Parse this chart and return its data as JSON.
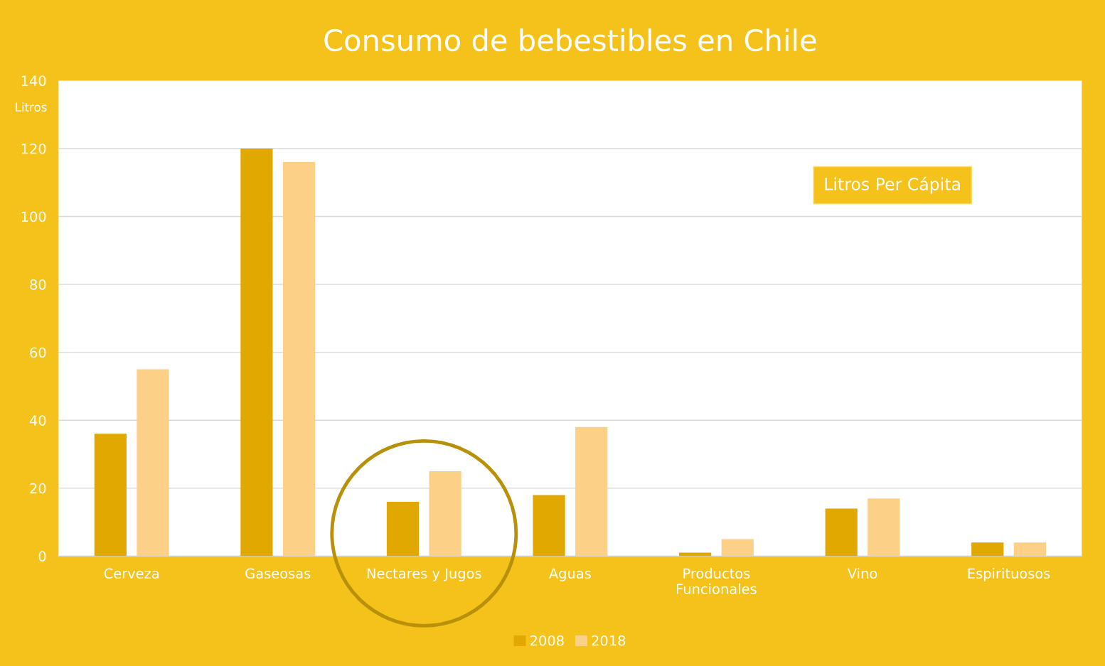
{
  "chart_data": {
    "type": "bar",
    "title": "Consumo de bebestibles en Chile",
    "ylabel": "Litros",
    "categories": [
      "Cerveza",
      "Gaseosas",
      "Nectares y Jugos",
      "Aguas",
      "Productos\nFuncionales",
      "Vino",
      "Espirituosos"
    ],
    "series": [
      {
        "name": "2008",
        "color": "#e0a800",
        "values": [
          36,
          120,
          16,
          18,
          1,
          14,
          4
        ]
      },
      {
        "name": "2018",
        "color": "#fdd088",
        "values": [
          55,
          116,
          25,
          38,
          5,
          17,
          4
        ]
      }
    ],
    "ylim": [
      0,
      140
    ],
    "yticks": [
      0,
      20,
      40,
      60,
      80,
      100,
      120,
      140
    ],
    "grid": "y",
    "legend": "bottom",
    "annotations": [
      "Litros Per Cápita"
    ]
  }
}
